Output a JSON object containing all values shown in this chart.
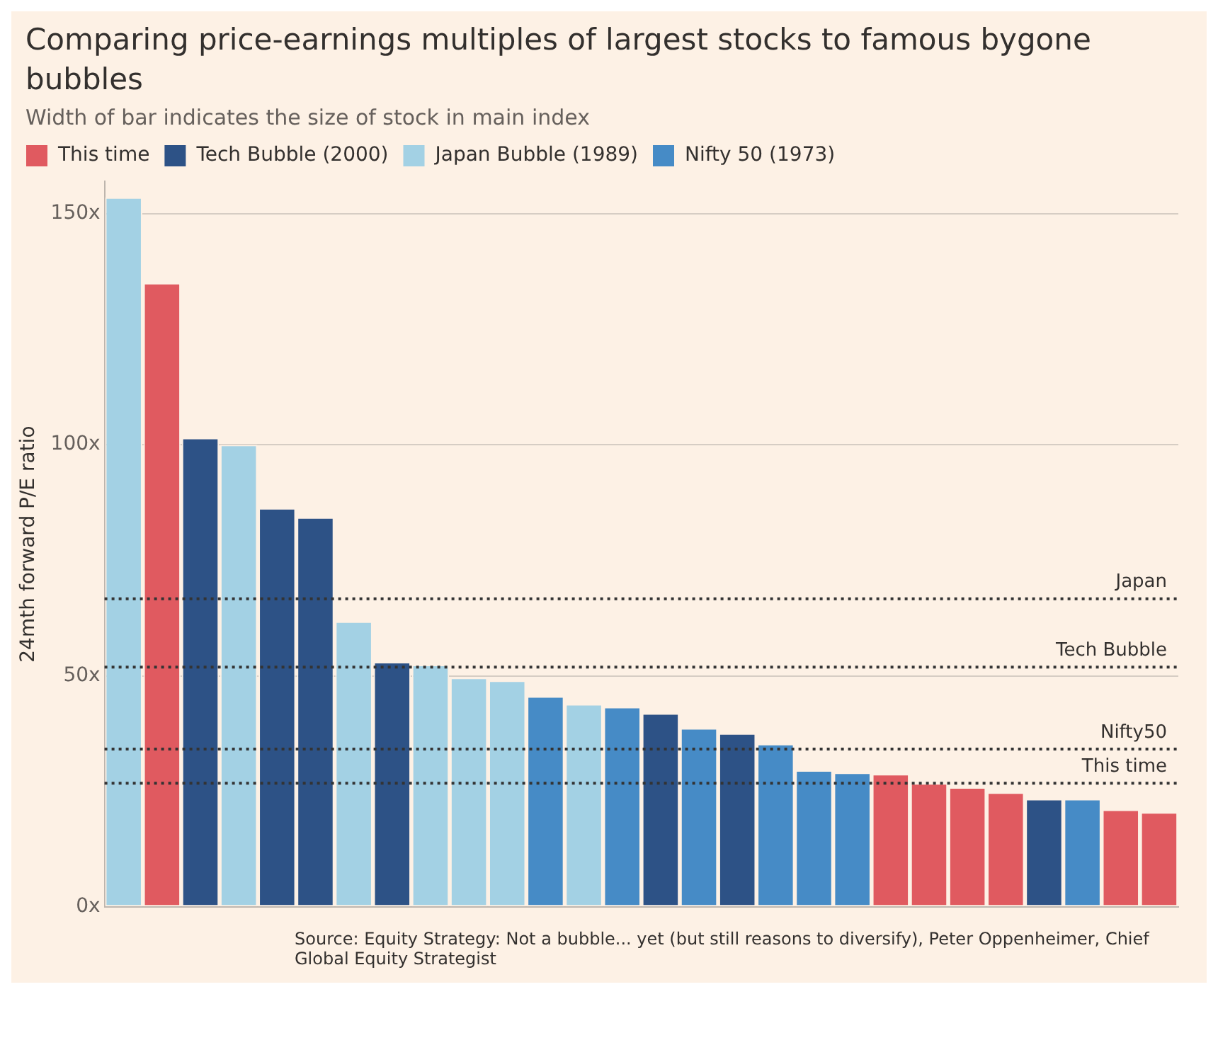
{
  "chart_data": {
    "type": "bar",
    "title": "Comparing price-earnings multiples of largest stocks to famous bygone bubbles",
    "subtitle": "Width of bar indicates the size of stock in main index",
    "ylabel": "24mth forward P/E ratio",
    "categories": [
      null,
      null,
      null,
      null,
      null,
      null,
      null,
      null,
      null,
      null,
      null,
      null,
      null,
      null,
      null,
      null,
      null,
      null,
      null,
      null,
      null,
      null,
      null,
      null,
      null,
      null,
      null,
      null
    ],
    "stacked": true,
    "series": [
      {
        "name": "This time",
        "color": "#e05a60",
        "values": [
          null,
          135,
          null,
          null,
          null,
          null,
          null,
          null,
          null,
          null,
          null,
          null,
          null,
          null,
          null,
          null,
          null,
          null,
          null,
          null,
          28.8,
          26.8,
          25.9,
          24.8,
          null,
          null,
          21.1,
          20.5
        ]
      },
      {
        "name": "Tech Bubble (2000)",
        "color": "#2d5286",
        "values": [
          null,
          null,
          101.5,
          null,
          86.3,
          84.3,
          null,
          53,
          null,
          null,
          null,
          null,
          null,
          null,
          41.9,
          null,
          37.6,
          null,
          null,
          null,
          null,
          null,
          null,
          null,
          23.4,
          null,
          null,
          null
        ]
      },
      {
        "name": "Japan Bubble (1989)",
        "color": "#a3d1e4",
        "values": [
          153.5,
          null,
          null,
          100,
          null,
          null,
          61.8,
          null,
          52.4,
          49.6,
          49,
          null,
          43.9,
          null,
          null,
          null,
          null,
          null,
          null,
          null,
          null,
          null,
          null,
          null,
          null,
          null,
          null,
          null
        ]
      },
      {
        "name": "Nifty 50 (1973)",
        "color": "#468bc6",
        "values": [
          null,
          null,
          null,
          null,
          null,
          null,
          null,
          null,
          null,
          null,
          null,
          45.6,
          null,
          43.3,
          null,
          38.7,
          null,
          35.3,
          29.6,
          29.1,
          null,
          null,
          null,
          null,
          null,
          23.4,
          null,
          null
        ]
      }
    ],
    "ylim": [
      0,
      157
    ],
    "yticks": [
      {
        "value": 0,
        "label": "0x"
      },
      {
        "value": 50,
        "label": "50x"
      },
      {
        "value": 100,
        "label": "100x"
      },
      {
        "value": 150,
        "label": "150x"
      }
    ],
    "grid": "y",
    "legend": "top left",
    "ref_lines": [
      {
        "axis": "y",
        "value": 66.7,
        "label": "Japan",
        "line_style": "dotted"
      },
      {
        "axis": "y",
        "value": 51.9,
        "label": "Tech Bubble",
        "line_style": "dotted"
      },
      {
        "axis": "y",
        "value": 34.2,
        "label": "Nifty50",
        "line_style": "dotted"
      },
      {
        "axis": "y",
        "value": 26.8,
        "label": "This time",
        "line_style": "dotted"
      }
    ],
    "annotations": [
      "Source: Equity Strategy: Not a bubble... yet (but still reasons to diversify), Peter Oppenheimer, Chief Global Equity Strategist"
    ]
  }
}
